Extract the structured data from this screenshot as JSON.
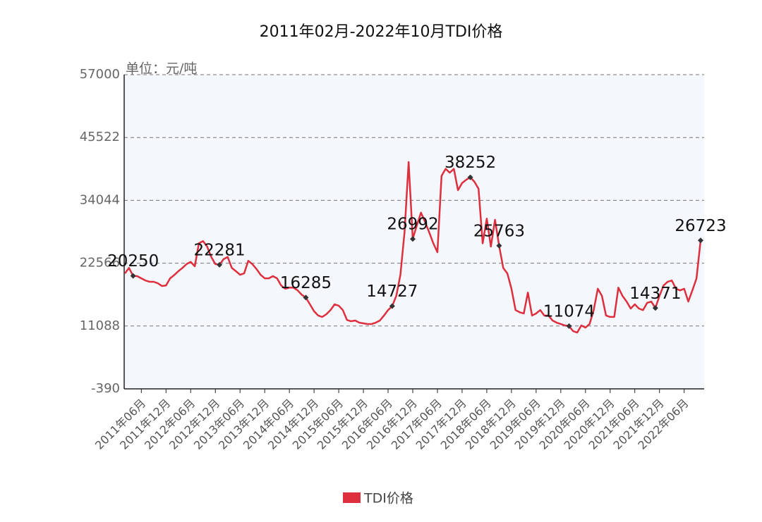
{
  "chart_data": {
    "type": "line",
    "title": "2011年02月-2022年10月TDI价格",
    "y_unit": "单位：元/吨",
    "categories": [
      null,
      null,
      null,
      null,
      "2011年06月",
      null,
      null,
      null,
      null,
      null,
      "2011年12月",
      null,
      null,
      null,
      null,
      null,
      "2012年06月",
      null,
      null,
      null,
      null,
      null,
      "2012年12月",
      null,
      null,
      null,
      null,
      null,
      "2013年06月",
      null,
      null,
      null,
      null,
      null,
      "2013年12月",
      null,
      null,
      null,
      null,
      null,
      "2014年06月",
      null,
      null,
      null,
      null,
      null,
      "2014年12月",
      null,
      null,
      null,
      null,
      null,
      "2015年06月",
      null,
      null,
      null,
      null,
      null,
      "2015年12月",
      null,
      null,
      null,
      null,
      null,
      "2016年06月",
      null,
      null,
      null,
      null,
      null,
      "2016年12月",
      null,
      null,
      null,
      null,
      null,
      "2017年06月",
      null,
      null,
      null,
      null,
      null,
      "2017年12月",
      null,
      null,
      null,
      null,
      null,
      "2018年06月",
      null,
      null,
      null,
      null,
      null,
      "2018年12月",
      null,
      null,
      null,
      null,
      null,
      "2019年06月",
      null,
      null,
      null,
      null,
      null,
      "2019年12月",
      null,
      null,
      null,
      null,
      null,
      "2020年06月",
      null,
      null,
      null,
      null,
      null,
      "2020年12月",
      null,
      null,
      null,
      null,
      null,
      "2021年06月",
      null,
      null,
      null,
      null,
      null,
      "2021年12月",
      null,
      null,
      null,
      null,
      null,
      "2022年06月",
      null,
      null,
      null,
      null
    ],
    "series": [
      {
        "name": "TDI价格",
        "color": "#dd2f3d",
        "values": [
          20700,
          21700,
          20250,
          20200,
          19800,
          19400,
          19170,
          19170,
          18900,
          18400,
          18500,
          19800,
          20400,
          21100,
          21700,
          22400,
          22800,
          22000,
          26200,
          26600,
          25600,
          23700,
          22400,
          22281,
          23300,
          23700,
          21700,
          21100,
          20450,
          20700,
          23000,
          22400,
          21500,
          20450,
          19800,
          19800,
          20200,
          19800,
          18500,
          17900,
          18100,
          18100,
          17600,
          16800,
          16285,
          15050,
          13800,
          13000,
          12750,
          13250,
          14000,
          15050,
          14800,
          14000,
          12200,
          11960,
          12090,
          11700,
          11580,
          11450,
          11450,
          11700,
          12090,
          13000,
          14000,
          14727,
          16600,
          20450,
          28200,
          41050,
          26992,
          29500,
          31800,
          30100,
          28200,
          26200,
          24570,
          38500,
          39800,
          39100,
          39800,
          35900,
          37200,
          37800,
          38252,
          37440,
          36150,
          26200,
          30700,
          25600,
          30500,
          25763,
          21700,
          20700,
          17900,
          14000,
          13600,
          13380,
          17200,
          13000,
          13380,
          14000,
          13000,
          13000,
          12090,
          11700,
          11450,
          11190,
          11074,
          10160,
          9900,
          11190,
          10800,
          11450,
          14000,
          17900,
          16600,
          13000,
          12750,
          12750,
          18100,
          16600,
          15560,
          14280,
          15050,
          14280,
          14000,
          15310,
          15560,
          14371,
          16600,
          18500,
          19170,
          19400,
          17900,
          17600,
          17900,
          15560,
          17600,
          19800,
          26723
        ],
        "value_labels": [
          null,
          null,
          "20250",
          null,
          null,
          null,
          null,
          null,
          null,
          null,
          null,
          null,
          null,
          null,
          null,
          null,
          null,
          null,
          null,
          null,
          null,
          null,
          null,
          "22281",
          null,
          null,
          null,
          null,
          null,
          null,
          null,
          null,
          null,
          null,
          null,
          null,
          null,
          null,
          null,
          null,
          null,
          null,
          null,
          null,
          "16285",
          null,
          null,
          null,
          null,
          null,
          null,
          null,
          null,
          null,
          null,
          null,
          null,
          null,
          null,
          null,
          null,
          null,
          null,
          null,
          null,
          "14727",
          null,
          null,
          null,
          null,
          "26992",
          null,
          null,
          null,
          null,
          null,
          null,
          null,
          null,
          null,
          null,
          null,
          null,
          null,
          "38252",
          null,
          null,
          null,
          null,
          null,
          null,
          "25763",
          null,
          null,
          null,
          null,
          null,
          null,
          null,
          null,
          null,
          null,
          null,
          null,
          null,
          null,
          null,
          null,
          "11074",
          null,
          null,
          null,
          null,
          null,
          null,
          null,
          null,
          null,
          null,
          null,
          null,
          null,
          null,
          null,
          null,
          null,
          null,
          null,
          null,
          "14371",
          null,
          null,
          null,
          null,
          null,
          null,
          null,
          null,
          null,
          null,
          "26723"
        ]
      }
    ],
    "ylim": [
      -390,
      57000
    ],
    "yticks": [
      -390,
      11088,
      22566,
      34044,
      45522,
      57000
    ],
    "grid": true
  }
}
